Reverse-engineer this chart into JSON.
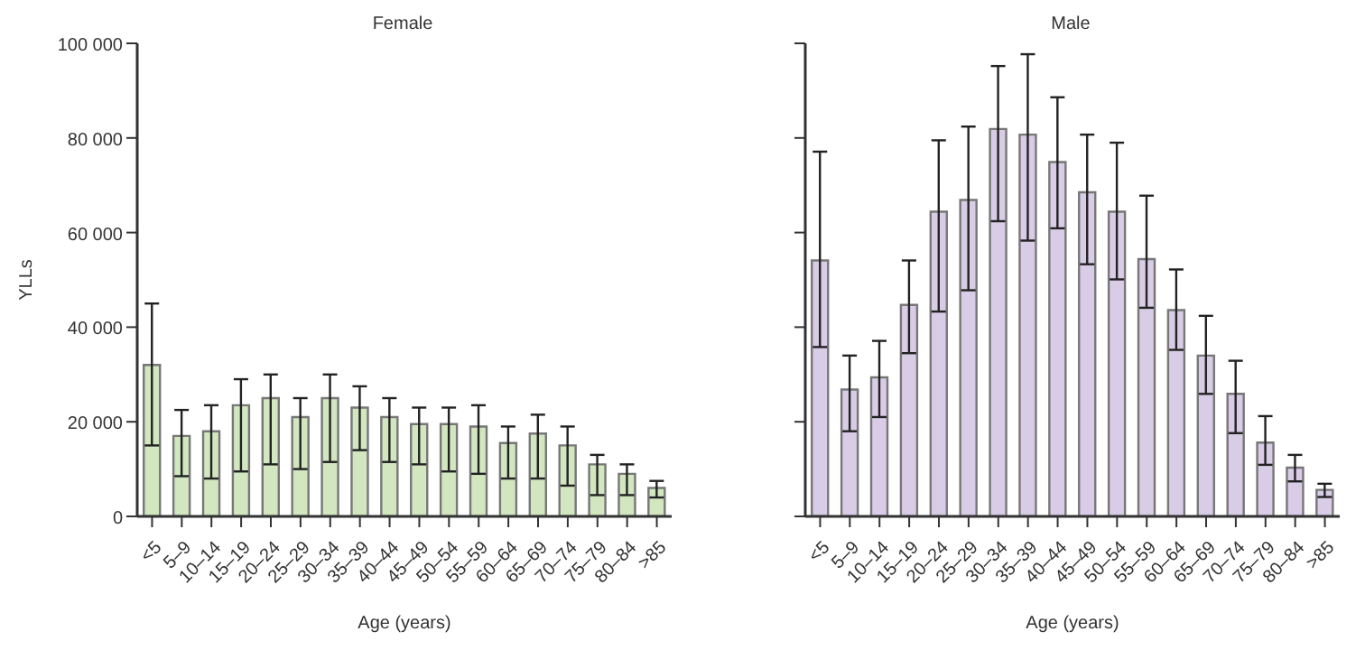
{
  "chart_data": [
    {
      "type": "bar",
      "title": "Female",
      "xlabel": "Age (years)",
      "ylabel": "YLLs",
      "categories": [
        "<5",
        "5–9",
        "10–14",
        "15–19",
        "20–24",
        "25–29",
        "30–34",
        "35–39",
        "40–44",
        "45–49",
        "50–54",
        "55–59",
        "60–64",
        "65–69",
        "70–74",
        "75–79",
        "80–84",
        ">85"
      ],
      "series": [
        {
          "color": "#d2e6c0",
          "values": [
            32000,
            17000,
            18000,
            23500,
            25000,
            21000,
            25000,
            23000,
            21000,
            19500,
            19500,
            19000,
            15500,
            17500,
            15000,
            11000,
            9000,
            6000
          ],
          "errors": [
            [
              15000,
              45000
            ],
            [
              8500,
              22500
            ],
            [
              8000,
              23500
            ],
            [
              9500,
              29000
            ],
            [
              11000,
              30000
            ],
            [
              10000,
              25000
            ],
            [
              11500,
              30000
            ],
            [
              14000,
              27500
            ],
            [
              11500,
              25000
            ],
            [
              11000,
              23000
            ],
            [
              9500,
              23000
            ],
            [
              9000,
              23500
            ],
            [
              8000,
              19000
            ],
            [
              8000,
              21500
            ],
            [
              6500,
              19000
            ],
            [
              4500,
              13000
            ],
            [
              4500,
              11000
            ],
            [
              4000,
              7500
            ]
          ]
        }
      ],
      "ylim": [
        0,
        100000
      ],
      "yticks": [
        0,
        {
          "value": 20000,
          "label": "20 000"
        },
        {
          "value": 40000,
          "label": "40 000"
        },
        {
          "value": 60000,
          "label": "60 000"
        },
        {
          "value": 80000,
          "label": "80 000"
        },
        {
          "value": 100000,
          "label": "100 000"
        }
      ],
      "grid": false
    },
    {
      "type": "bar",
      "title": "Male",
      "xlabel": "Age (years)",
      "categories": [
        "<5",
        "5–9",
        "10–14",
        "15–19",
        "20–24",
        "25–29",
        "30–34",
        "35–39",
        "40–44",
        "45–49",
        "50–54",
        "55–59",
        "60–64",
        "65–69",
        "70–74",
        "75–79",
        "80–84",
        ">85"
      ],
      "series": [
        {
          "color": "#d9cce6",
          "values": [
            54100,
            26800,
            29400,
            44700,
            64400,
            66900,
            81900,
            80700,
            74900,
            68500,
            64400,
            54400,
            43600,
            34000,
            25900,
            15600,
            10300,
            5600
          ],
          "errors": [
            [
              35800,
              77100
            ],
            [
              18000,
              34000
            ],
            [
              21000,
              37100
            ],
            [
              34500,
              54100
            ],
            [
              43300,
              79500
            ],
            [
              47800,
              82400
            ],
            [
              62400,
              95200
            ],
            [
              58300,
              97700
            ],
            [
              60900,
              88600
            ],
            [
              53300,
              80700
            ],
            [
              50100,
              79000
            ],
            [
              44100,
              67800
            ],
            [
              35200,
              52200
            ],
            [
              25900,
              42400
            ],
            [
              17600,
              32900
            ],
            [
              10900,
              21200
            ],
            [
              7400,
              13000
            ],
            [
              4100,
              6900
            ]
          ]
        }
      ],
      "ylim": [
        0,
        100000
      ],
      "yticks": [
        0,
        20000,
        40000,
        60000,
        80000,
        100000
      ],
      "grid": false,
      "tick_labels": "x"
    }
  ]
}
